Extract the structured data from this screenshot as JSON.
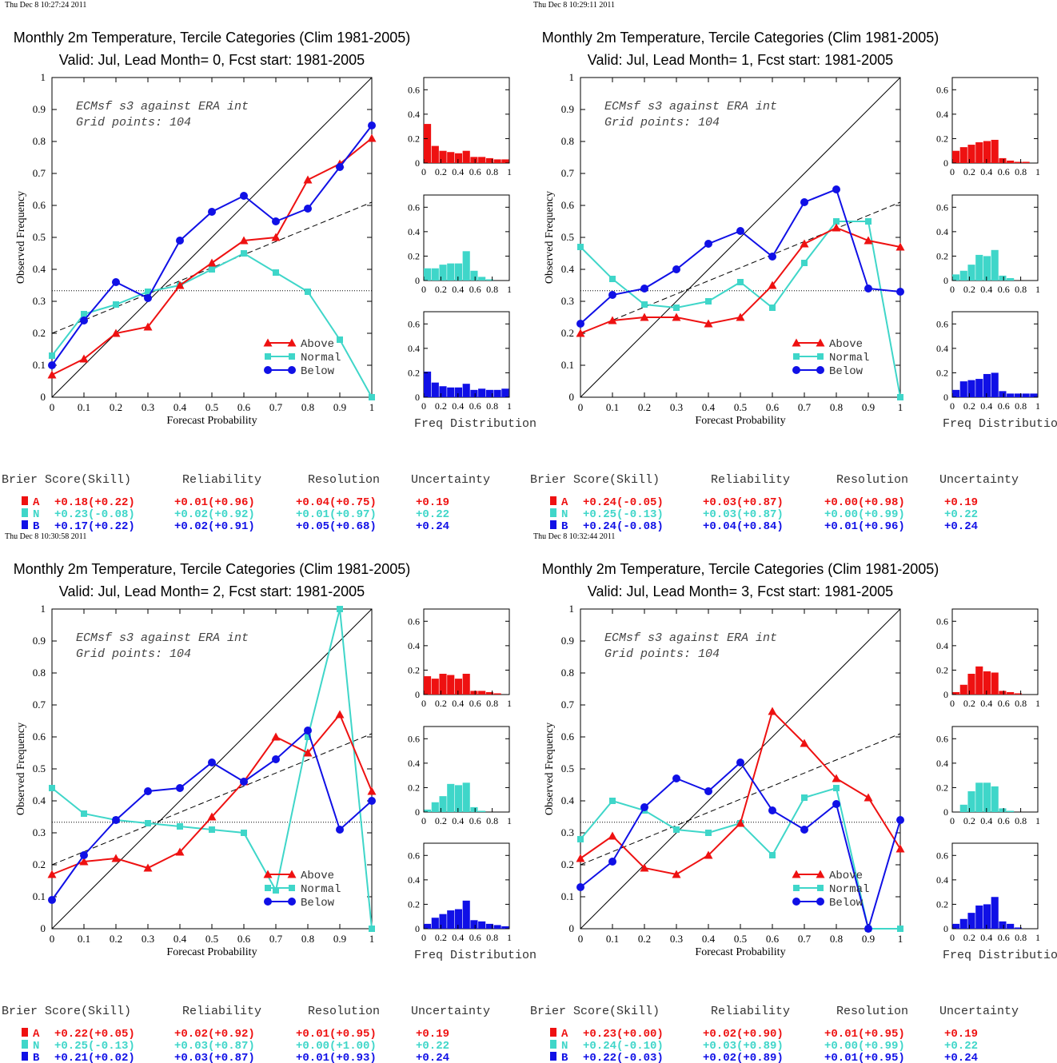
{
  "legend_labels": {
    "above": "Above",
    "normal": "Normal",
    "below": "Below"
  },
  "axis_labels": {
    "x": "Forecast Probability",
    "y": "Observed Frequency",
    "dist": "Freq Distribution"
  },
  "colors": {
    "above": "#ee1111",
    "normal": "#3fd6c9",
    "below": "#1010e6"
  },
  "score_headers": {
    "brier": "Brier Score(Skill)",
    "reliability": "Reliability",
    "resolution": "Resolution",
    "uncertainty": "Uncertainty"
  },
  "chart_data": [
    {
      "type": "line",
      "timestamp": "Thu Dec  8 10:27:24 2011",
      "title": "Monthly 2m Temperature, Tercile Categories (Clim 1981-2005)",
      "subtitle": "Valid: Jul, Lead Month= 0, Fcst start: 1981-2005",
      "annotation": [
        "ECMsf s3 against ERA int",
        "Grid points:  104"
      ],
      "xlabel": "Forecast Probability",
      "ylabel": "Observed Frequency",
      "xlim": [
        0,
        1
      ],
      "ylim": [
        0,
        1
      ],
      "x": [
        0,
        0.1,
        0.2,
        0.3,
        0.4,
        0.5,
        0.6,
        0.7,
        0.8,
        0.9,
        1
      ],
      "series": [
        {
          "name": "Above",
          "values": [
            0.07,
            0.12,
            0.2,
            0.22,
            0.35,
            0.42,
            0.49,
            0.5,
            0.68,
            0.73,
            0.81
          ]
        },
        {
          "name": "Normal",
          "values": [
            0.13,
            0.26,
            0.29,
            0.33,
            0.35,
            0.4,
            0.45,
            0.39,
            0.33,
            0.18,
            0.0
          ]
        },
        {
          "name": "Below",
          "values": [
            0.1,
            0.24,
            0.36,
            0.31,
            0.49,
            0.58,
            0.63,
            0.55,
            0.59,
            0.72,
            0.85
          ]
        }
      ],
      "reference_lines": {
        "diagonal": true,
        "climatology": 0.333,
        "skill_line": [
          0.2,
          0.61
        ]
      },
      "histograms": {
        "ylim": [
          0,
          0.7
        ],
        "yticks": [
          "0",
          "0.2",
          "0.4",
          "0.6"
        ],
        "xticks": [
          "0",
          "0.2",
          "0.4",
          "0.6",
          "0.8",
          "1"
        ],
        "above": [
          0.32,
          0.14,
          0.1,
          0.09,
          0.08,
          0.1,
          0.05,
          0.05,
          0.04,
          0.03,
          0.03
        ],
        "normal": [
          0.1,
          0.1,
          0.13,
          0.14,
          0.14,
          0.24,
          0.08,
          0.03,
          0.01,
          0,
          0
        ],
        "below": [
          0.21,
          0.12,
          0.09,
          0.08,
          0.08,
          0.11,
          0.06,
          0.07,
          0.06,
          0.06,
          0.07
        ]
      },
      "scores": [
        {
          "cat": "A",
          "brier": "+0.18(+0.22)",
          "reliability": "+0.01(+0.96)",
          "resolution": "+0.04(+0.75)",
          "uncertainty": "+0.19"
        },
        {
          "cat": "N",
          "brier": "+0.23(-0.08)",
          "reliability": "+0.02(+0.92)",
          "resolution": "+0.01(+0.97)",
          "uncertainty": "+0.22"
        },
        {
          "cat": "B",
          "brier": "+0.17(+0.22)",
          "reliability": "+0.02(+0.91)",
          "resolution": "+0.05(+0.68)",
          "uncertainty": "+0.24"
        }
      ]
    },
    {
      "type": "line",
      "timestamp": "Thu Dec  8 10:29:11 2011",
      "title": "Monthly 2m Temperature, Tercile Categories (Clim 1981-2005)",
      "subtitle": "Valid: Jul, Lead Month= 1, Fcst start: 1981-2005",
      "annotation": [
        "ECMsf s3 against ERA int",
        "Grid points:  104"
      ],
      "xlabel": "Forecast Probability",
      "ylabel": "Observed Frequency",
      "xlim": [
        0,
        1
      ],
      "ylim": [
        0,
        1
      ],
      "x": [
        0,
        0.1,
        0.2,
        0.3,
        0.4,
        0.5,
        0.6,
        0.7,
        0.8,
        0.9,
        1
      ],
      "series": [
        {
          "name": "Above",
          "values": [
            0.2,
            0.24,
            0.25,
            0.25,
            0.23,
            0.25,
            0.35,
            0.48,
            0.53,
            0.49,
            0.47
          ]
        },
        {
          "name": "Normal",
          "values": [
            0.47,
            0.37,
            0.29,
            0.28,
            0.3,
            0.36,
            0.28,
            0.42,
            0.55,
            0.55,
            0.0
          ]
        },
        {
          "name": "Below",
          "values": [
            0.23,
            0.32,
            0.34,
            0.4,
            0.48,
            0.52,
            0.44,
            0.61,
            0.65,
            0.34,
            0.33
          ]
        }
      ],
      "reference_lines": {
        "diagonal": true,
        "climatology": 0.333,
        "skill_line": [
          0.2,
          0.61
        ]
      },
      "histograms": {
        "ylim": [
          0,
          0.7
        ],
        "yticks": [
          "0",
          "0.2",
          "0.4",
          "0.6"
        ],
        "xticks": [
          "0",
          "0.2",
          "0.4",
          "0.6",
          "0.8",
          "1"
        ],
        "above": [
          0.1,
          0.13,
          0.15,
          0.17,
          0.18,
          0.19,
          0.04,
          0.02,
          0.01,
          0.01,
          0
        ],
        "normal": [
          0.05,
          0.08,
          0.13,
          0.21,
          0.2,
          0.25,
          0.04,
          0.02,
          0,
          0,
          0
        ],
        "below": [
          0.06,
          0.13,
          0.14,
          0.15,
          0.19,
          0.2,
          0.05,
          0.03,
          0.03,
          0.03,
          0.03
        ]
      },
      "scores": [
        {
          "cat": "A",
          "brier": "+0.24(-0.05)",
          "reliability": "+0.03(+0.87)",
          "resolution": "+0.00(+0.98)",
          "uncertainty": "+0.19"
        },
        {
          "cat": "N",
          "brier": "+0.25(-0.13)",
          "reliability": "+0.03(+0.87)",
          "resolution": "+0.00(+0.99)",
          "uncertainty": "+0.22"
        },
        {
          "cat": "B",
          "brier": "+0.24(-0.08)",
          "reliability": "+0.04(+0.84)",
          "resolution": "+0.01(+0.96)",
          "uncertainty": "+0.24"
        }
      ]
    },
    {
      "type": "line",
      "timestamp": "Thu Dec  8 10:30:58 2011",
      "title": "Monthly 2m Temperature, Tercile Categories (Clim 1981-2005)",
      "subtitle": "Valid: Jul, Lead Month= 2, Fcst start: 1981-2005",
      "annotation": [
        "ECMsf s3 against ERA int",
        "Grid points:  104"
      ],
      "xlabel": "Forecast Probability",
      "ylabel": "Observed Frequency",
      "xlim": [
        0,
        1
      ],
      "ylim": [
        0,
        1
      ],
      "x": [
        0,
        0.1,
        0.2,
        0.3,
        0.4,
        0.5,
        0.6,
        0.7,
        0.8,
        0.9,
        1
      ],
      "series": [
        {
          "name": "Above",
          "values": [
            0.17,
            0.21,
            0.22,
            0.19,
            0.24,
            0.35,
            0.46,
            0.6,
            0.55,
            0.67,
            0.43
          ]
        },
        {
          "name": "Normal",
          "values": [
            0.44,
            0.36,
            0.34,
            0.33,
            0.32,
            0.31,
            0.3,
            0.12,
            0.6,
            1.0,
            0.0
          ]
        },
        {
          "name": "Below",
          "values": [
            0.09,
            0.23,
            0.34,
            0.43,
            0.44,
            0.52,
            0.46,
            0.53,
            0.62,
            0.31,
            0.4
          ]
        }
      ],
      "reference_lines": {
        "diagonal": true,
        "climatology": 0.333,
        "skill_line": [
          0.2,
          0.61
        ]
      },
      "histograms": {
        "ylim": [
          0,
          0.7
        ],
        "yticks": [
          "0",
          "0.2",
          "0.4",
          "0.6"
        ],
        "xticks": [
          "0",
          "0.2",
          "0.4",
          "0.6",
          "0.8",
          "1"
        ],
        "above": [
          0.15,
          0.13,
          0.17,
          0.16,
          0.13,
          0.17,
          0.03,
          0.03,
          0.02,
          0.01,
          0
        ],
        "normal": [
          0.02,
          0.08,
          0.13,
          0.23,
          0.22,
          0.24,
          0.04,
          0.01,
          0,
          0,
          0
        ],
        "below": [
          0.04,
          0.09,
          0.12,
          0.15,
          0.16,
          0.23,
          0.07,
          0.06,
          0.04,
          0.03,
          0.02
        ]
      },
      "scores": [
        {
          "cat": "A",
          "brier": "+0.22(+0.05)",
          "reliability": "+0.02(+0.92)",
          "resolution": "+0.01(+0.95)",
          "uncertainty": "+0.19"
        },
        {
          "cat": "N",
          "brier": "+0.25(-0.13)",
          "reliability": "+0.03(+0.87)",
          "resolution": "+0.00(+1.00)",
          "uncertainty": "+0.22"
        },
        {
          "cat": "B",
          "brier": "+0.21(+0.02)",
          "reliability": "+0.03(+0.87)",
          "resolution": "+0.01(+0.93)",
          "uncertainty": "+0.24"
        }
      ]
    },
    {
      "type": "line",
      "timestamp": "Thu Dec  8 10:32:44 2011",
      "title": "Monthly 2m Temperature, Tercile Categories (Clim 1981-2005)",
      "subtitle": "Valid: Jul, Lead Month= 3, Fcst start: 1981-2005",
      "annotation": [
        "ECMsf s3 against ERA int",
        "Grid points:  104"
      ],
      "xlabel": "Forecast Probability",
      "ylabel": "Observed Frequency",
      "xlim": [
        0,
        1
      ],
      "ylim": [
        0,
        1
      ],
      "x": [
        0,
        0.1,
        0.2,
        0.3,
        0.4,
        0.5,
        0.6,
        0.7,
        0.8,
        0.9,
        1
      ],
      "series": [
        {
          "name": "Above",
          "values": [
            0.22,
            0.29,
            0.19,
            0.17,
            0.23,
            0.33,
            0.68,
            0.58,
            0.47,
            0.41,
            0.25
          ]
        },
        {
          "name": "Normal",
          "values": [
            0.28,
            0.4,
            0.37,
            0.31,
            0.3,
            0.33,
            0.23,
            0.41,
            0.44,
            0.0,
            0.0
          ]
        },
        {
          "name": "Below",
          "values": [
            0.13,
            0.21,
            0.38,
            0.47,
            0.43,
            0.52,
            0.37,
            0.31,
            0.39,
            0.0,
            0.34
          ]
        }
      ],
      "reference_lines": {
        "diagonal": true,
        "climatology": 0.333,
        "skill_line": [
          0.2,
          0.61
        ]
      },
      "histograms": {
        "ylim": [
          0,
          0.7
        ],
        "yticks": [
          "0",
          "0.2",
          "0.4",
          "0.6"
        ],
        "xticks": [
          "0",
          "0.2",
          "0.4",
          "0.6",
          "0.8",
          "1"
        ],
        "above": [
          0.02,
          0.08,
          0.17,
          0.23,
          0.19,
          0.18,
          0.03,
          0.02,
          0.01,
          0,
          0
        ],
        "normal": [
          0.0,
          0.06,
          0.17,
          0.24,
          0.24,
          0.21,
          0.03,
          0.01,
          0,
          0,
          0
        ],
        "below": [
          0.04,
          0.08,
          0.13,
          0.19,
          0.2,
          0.26,
          0.06,
          0.04,
          0.01,
          0,
          0
        ]
      },
      "scores": [
        {
          "cat": "A",
          "brier": "+0.23(+0.00)",
          "reliability": "+0.02(+0.90)",
          "resolution": "+0.01(+0.95)",
          "uncertainty": "+0.19"
        },
        {
          "cat": "N",
          "brier": "+0.24(-0.10)",
          "reliability": "+0.03(+0.89)",
          "resolution": "+0.00(+0.99)",
          "uncertainty": "+0.22"
        },
        {
          "cat": "B",
          "brier": "+0.22(-0.03)",
          "reliability": "+0.02(+0.89)",
          "resolution": "+0.01(+0.95)",
          "uncertainty": "+0.24"
        }
      ]
    }
  ]
}
